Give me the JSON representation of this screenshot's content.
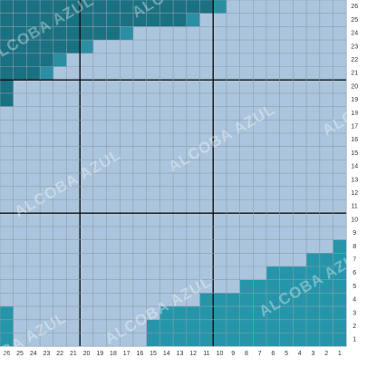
{
  "column_labels": [
    26,
    25,
    24,
    23,
    22,
    21,
    20,
    19,
    18,
    17,
    16,
    15,
    14,
    13,
    12,
    11,
    10,
    9,
    8,
    7,
    6,
    5,
    4,
    3,
    2,
    1
  ],
  "row_labels": [
    26,
    25,
    24,
    23,
    22,
    21,
    20,
    19,
    18,
    17,
    16,
    15,
    14,
    13,
    12,
    11,
    10,
    9,
    8,
    7,
    6,
    5,
    4,
    3,
    2,
    1
  ],
  "watermark": "ALCOBA AZUL"
}
